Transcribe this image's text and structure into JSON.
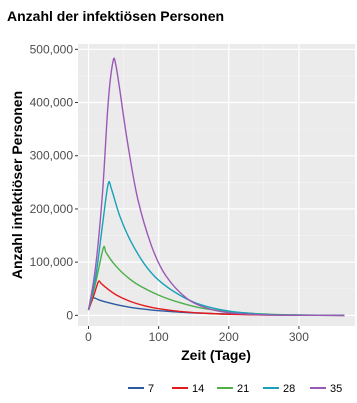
{
  "chart_data": {
    "type": "line",
    "title": "Anzahl der infektiösen Personen",
    "xlabel": "Zeit (Tage)",
    "ylabel": "Anzahl infektiöser Personen",
    "xlim": [
      -15,
      380
    ],
    "ylim": [
      -20000,
      510000
    ],
    "x_ticks": [
      0,
      100,
      200,
      300
    ],
    "x_tick_labels": [
      "0",
      "100",
      "200",
      "300"
    ],
    "y_ticks": [
      0,
      100000,
      200000,
      300000,
      400000,
      500000
    ],
    "y_tick_labels": [
      "0",
      "100,000",
      "200,000",
      "300,000",
      "400,000",
      "500,000"
    ],
    "grid": true,
    "legend_position": "bottom",
    "series": [
      {
        "name": "7",
        "color": "#2c5aa0",
        "x": [
          0,
          4,
          7,
          15,
          25,
          40,
          60,
          80,
          100,
          130,
          160,
          200,
          250,
          300,
          365
        ],
        "y": [
          10000,
          25000,
          33000,
          29000,
          25000,
          20000,
          15000,
          11500,
          8800,
          6000,
          4000,
          2500,
          1200,
          500,
          100
        ]
      },
      {
        "name": "14",
        "color": "#e31a1c",
        "x": [
          0,
          7,
          14,
          18,
          25,
          40,
          60,
          80,
          100,
          130,
          160,
          200,
          250,
          300,
          365
        ],
        "y": [
          10000,
          35000,
          63000,
          60000,
          52000,
          38000,
          26000,
          18000,
          12500,
          7500,
          4500,
          2000,
          700,
          200,
          0
        ]
      },
      {
        "name": "21",
        "color": "#4daf4a",
        "x": [
          0,
          10,
          21,
          25,
          35,
          50,
          70,
          100,
          130,
          160,
          200,
          250,
          300,
          365
        ],
        "y": [
          10000,
          60000,
          126000,
          118000,
          99000,
          78000,
          58000,
          38000,
          24000,
          14000,
          7000,
          2500,
          600,
          0
        ]
      },
      {
        "name": "28",
        "color": "#17a2b8",
        "x": [
          0,
          10,
          20,
          28,
          33,
          45,
          60,
          80,
          100,
          130,
          160,
          200,
          250,
          300,
          365
        ],
        "y": [
          10000,
          70000,
          170000,
          247000,
          236000,
          185000,
          140000,
          96000,
          66000,
          38000,
          20000,
          8000,
          2000,
          300,
          0
        ]
      },
      {
        "name": "35",
        "color": "#9b59b6",
        "x": [
          0,
          10,
          20,
          28,
          35,
          39,
          45,
          55,
          70,
          90,
          110,
          140,
          170,
          200,
          250,
          300,
          365
        ],
        "y": [
          10000,
          90000,
          230000,
          400000,
          478000,
          470000,
          420000,
          330000,
          220000,
          130000,
          75000,
          32000,
          13000,
          5000,
          1000,
          100,
          0
        ]
      }
    ]
  }
}
